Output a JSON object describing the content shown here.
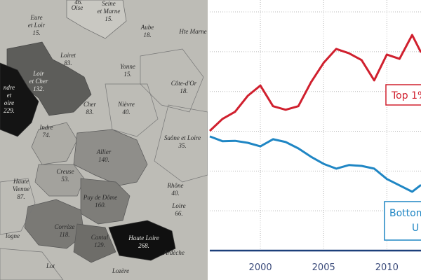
{
  "map": {
    "departments": [
      {
        "lines": [
          "Oise"
        ]
      },
      {
        "lines": [
          "46."
        ]
      },
      {
        "lines": [
          "Seine",
          "et Marne",
          "15."
        ]
      },
      {
        "lines": [
          "Eure",
          "et Loir",
          "15."
        ]
      },
      {
        "lines": [
          "Aube",
          "18."
        ]
      },
      {
        "lines": [
          "Hte Marne"
        ]
      },
      {
        "lines": [
          "Loiret",
          "83."
        ]
      },
      {
        "lines": [
          "Yonne",
          "15."
        ]
      },
      {
        "lines": [
          "Loir",
          "et Cher",
          "132."
        ]
      },
      {
        "lines": [
          "ndre",
          "et",
          "oire",
          "229."
        ]
      },
      {
        "lines": [
          "Côte-d'Or",
          "18."
        ]
      },
      {
        "lines": [
          "Cher",
          "83."
        ]
      },
      {
        "lines": [
          "Nièvre",
          "40."
        ]
      },
      {
        "lines": [
          "Indre",
          "74."
        ]
      },
      {
        "lines": [
          "Saône et Loire",
          "35."
        ]
      },
      {
        "lines": [
          "Allier",
          "140."
        ]
      },
      {
        "lines": [
          "Creuse",
          "53."
        ]
      },
      {
        "lines": [
          "Haute",
          "Vienne",
          "87."
        ]
      },
      {
        "lines": [
          "Puy de Dôme",
          "160."
        ]
      },
      {
        "lines": [
          "Rhône",
          "40."
        ]
      },
      {
        "lines": [
          "Loire",
          "66."
        ]
      },
      {
        "lines": [
          "Corrèze",
          "118."
        ]
      },
      {
        "lines": [
          "Cantal",
          "129."
        ]
      },
      {
        "lines": [
          "Haute Loire",
          "268."
        ]
      },
      {
        "lines": [
          "Ardèche"
        ]
      },
      {
        "lines": [
          "Lot"
        ]
      },
      {
        "lines": [
          "Lozère"
        ]
      },
      {
        "lines": [
          "logne"
        ]
      }
    ]
  },
  "chart_data": {
    "type": "line",
    "x": [
      1996,
      1997,
      1998,
      1999,
      2000,
      2001,
      2002,
      2003,
      2004,
      2005,
      2006,
      2007,
      2008,
      2009,
      2010,
      2011,
      2012,
      2012.7
    ],
    "series": [
      {
        "name": "Top 1%",
        "color": "#d0202e",
        "values": [
          3.01,
          3.31,
          3.49,
          3.89,
          4.15,
          3.63,
          3.54,
          3.63,
          4.23,
          4.72,
          5.07,
          4.96,
          4.79,
          4.28,
          4.93,
          4.82,
          5.42,
          4.98
        ]
      },
      {
        "name": "Bottom",
        "subtitle": "U",
        "color": "#1f86c4",
        "values": [
          2.87,
          2.75,
          2.76,
          2.71,
          2.62,
          2.8,
          2.73,
          2.57,
          2.36,
          2.18,
          2.06,
          2.15,
          2.13,
          2.06,
          1.8,
          1.64,
          1.48,
          1.65
        ]
      }
    ],
    "xlim": [
      1996,
      2012.7
    ],
    "xticks": [
      2000,
      2005,
      2010
    ],
    "ylim": [
      0,
      6.3
    ],
    "ygrid": [
      1,
      2,
      3,
      4,
      5,
      6
    ],
    "grid": true
  }
}
